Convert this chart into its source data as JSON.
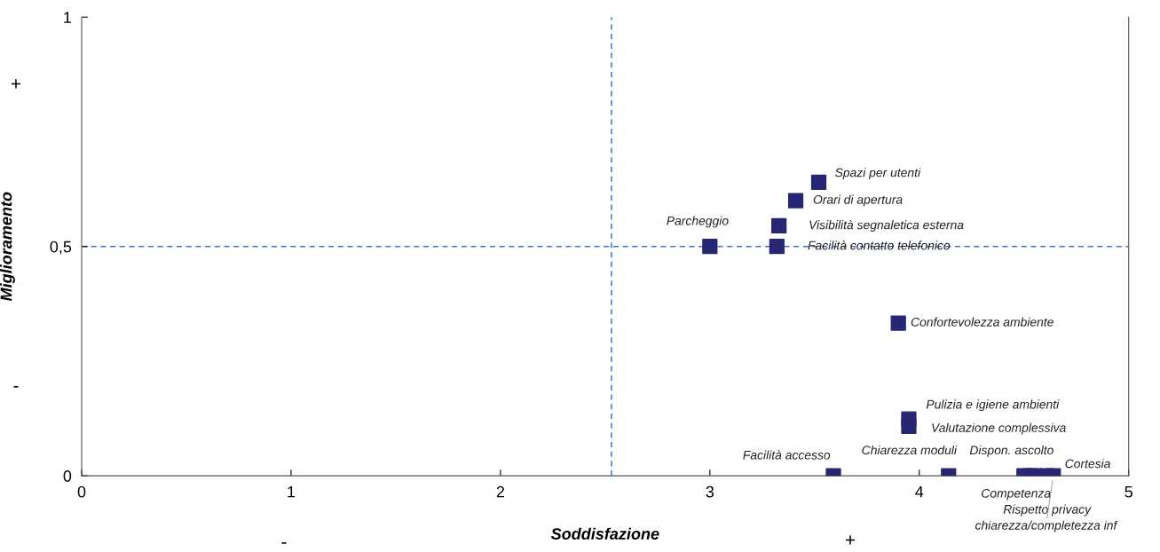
{
  "chart_data": {
    "type": "scatter",
    "xlabel": "Soddisfazione",
    "ylabel": "Miglioramento",
    "x": [
      3.52,
      3.41,
      3.33,
      3.32,
      3.0,
      3.9,
      3.95,
      3.95,
      3.59,
      4.14,
      4.5,
      4.53,
      4.55,
      4.61,
      4.64
    ],
    "series": [
      {
        "color": "#262673",
        "values": [
          0.64,
          0.6,
          0.545,
          0.5,
          0.5,
          0.333,
          0.124,
          0.108,
          0,
          0,
          0,
          0,
          0,
          0,
          0
        ]
      }
    ],
    "marker": "square",
    "grid": false,
    "legend": false,
    "xlim": [
      0,
      5
    ],
    "xticks": [
      0,
      1,
      2,
      3,
      4,
      5
    ],
    "ylim": [
      0,
      1
    ],
    "yticks": [
      0,
      {
        "value": 0.5,
        "label": "0,5"
      },
      1
    ],
    "ref_lines": [
      {
        "axis": "x",
        "value": 2.53,
        "color": "#3a78c8",
        "line_style": "dashed"
      },
      {
        "axis": "y",
        "value": 0.5,
        "color": "#3a78c8",
        "line_style": "dashed"
      }
    ],
    "annotations": [
      {
        "text": "Spazi per utenti",
        "x": 3.52,
        "y": 0.64
      },
      {
        "text": "Orari di apertura",
        "x": 3.41,
        "y": 0.6
      },
      {
        "text": "Visibilità segnaletica esterna",
        "x": 3.33,
        "y": 0.545
      },
      {
        "text": "Facilità contatto telefonico",
        "x": 3.32,
        "y": 0.5
      },
      {
        "text": "Parcheggio",
        "x": 3.0,
        "y": 0.5
      },
      {
        "text": "Confortevolezza ambiente",
        "x": 3.9,
        "y": 0.333
      },
      {
        "text": "Pulizia e igiene ambienti",
        "x": 3.95,
        "y": 0.124
      },
      {
        "text": "Valutazione complessiva",
        "x": 3.95,
        "y": 0.108
      },
      {
        "text": "Facilità accesso",
        "x": 3.59,
        "y": 0
      },
      {
        "text": "Chiarezza moduli",
        "x": 4.14,
        "y": 0
      },
      {
        "text": "Dispon. ascolto",
        "x": 4.5,
        "y": 0
      },
      {
        "text": "Cortesia",
        "x": 4.53,
        "y": 0
      },
      {
        "text": "Competenza",
        "x": 4.55,
        "y": 0
      },
      {
        "text": "Rispetto privacy",
        "x": 4.61,
        "y": 0
      },
      {
        "text": "chiarezza/completezza inf",
        "x": 4.64,
        "y": 0
      },
      "-",
      "+",
      "+",
      "-"
    ]
  }
}
